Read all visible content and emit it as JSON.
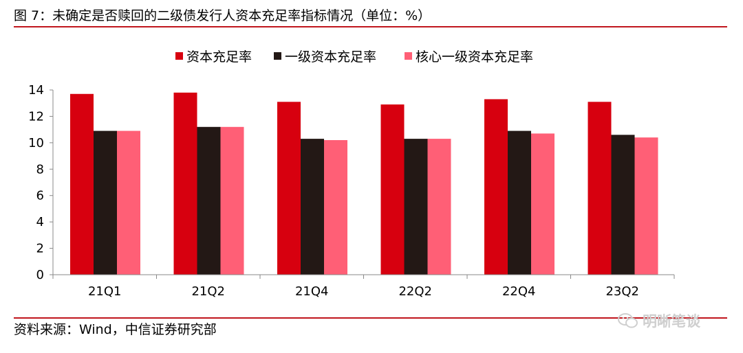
{
  "header": {
    "title": "图 7：未确定是否赎回的二级债发行人资本充足率指标情况（单位：%）"
  },
  "footer": {
    "source": "资料来源：Wind，中信证券研究部",
    "watermark": "明晰笔谈"
  },
  "colors": {
    "rule": "#c0151c",
    "series": [
      "#d7000f",
      "#231815",
      "#ff5f76"
    ]
  },
  "chart_data": {
    "type": "bar",
    "title": "",
    "xlabel": "",
    "ylabel": "",
    "categories": [
      "21Q1",
      "21Q2",
      "21Q4",
      "22Q2",
      "22Q4",
      "23Q2"
    ],
    "series": [
      {
        "name": "资本充足率",
        "values": [
          13.7,
          13.8,
          13.1,
          12.9,
          13.3,
          13.1
        ]
      },
      {
        "name": "一级资本充足率",
        "values": [
          10.9,
          11.2,
          10.3,
          10.3,
          10.9,
          10.6
        ]
      },
      {
        "name": "核心一级资本充足率",
        "values": [
          10.9,
          11.2,
          10.2,
          10.3,
          10.7,
          10.4
        ]
      }
    ],
    "ylim": [
      0,
      14
    ],
    "yticks": [
      0,
      2,
      4,
      6,
      8,
      10,
      12,
      14
    ],
    "grid": false,
    "legend_position": "top"
  }
}
